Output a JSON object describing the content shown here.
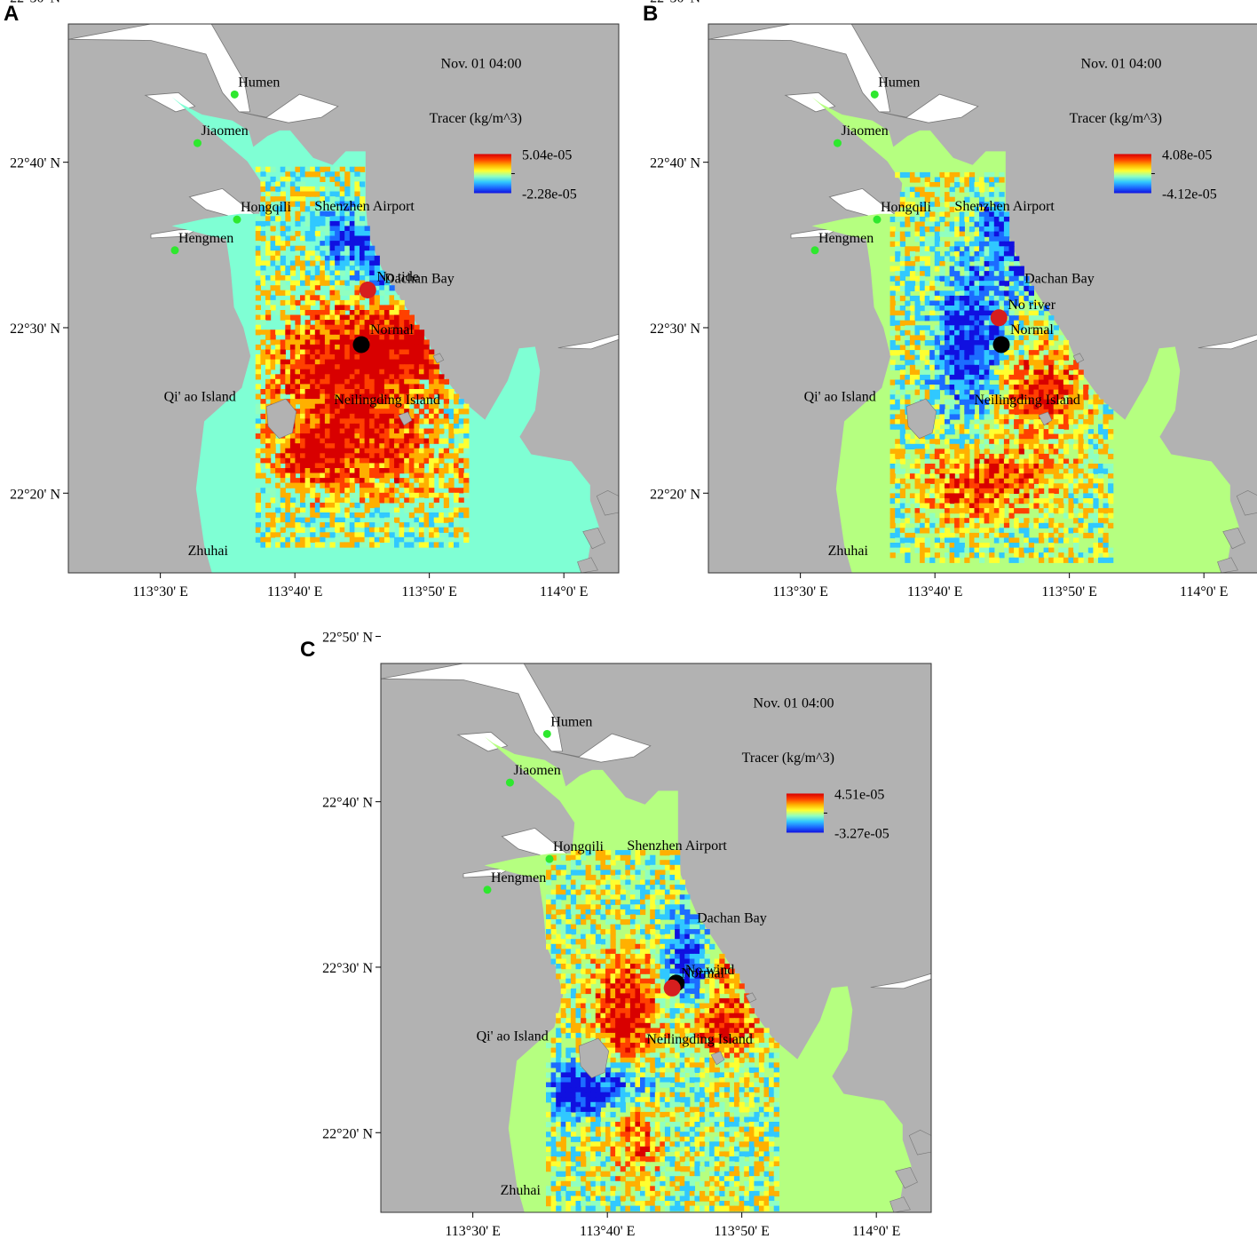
{
  "panels": [
    {
      "id": "a",
      "letter": "A",
      "timestamp": "Nov. 01 04:00",
      "colorbar": {
        "title": "Tracer (kg/m^3)",
        "max_label": "5.04e-05",
        "min_label": "-2.28e-05"
      },
      "background_color": "#7fffd4",
      "anomaly_pattern": "A",
      "markers": [
        {
          "label": "No tide",
          "color": "#d61e1e",
          "lon": 113.757,
          "lat": 22.538
        },
        {
          "label": "Normal",
          "color": "#000000",
          "lon": 113.749,
          "lat": 22.483
        }
      ]
    },
    {
      "id": "b",
      "letter": "B",
      "timestamp": "Nov. 01 04:00",
      "colorbar": {
        "title": "Tracer (kg/m^3)",
        "max_label": "4.08e-05",
        "min_label": "-4.12e-05"
      },
      "background_color": "#b5ff80",
      "anomaly_pattern": "B",
      "markers": [
        {
          "label": "No river",
          "color": "#d61e1e",
          "lon": 113.746,
          "lat": 22.51
        },
        {
          "label": "Normal",
          "color": "#000000",
          "lon": 113.749,
          "lat": 22.483
        }
      ]
    },
    {
      "id": "c",
      "letter": "C",
      "timestamp": "Nov. 01 04:00",
      "colorbar": {
        "title": "Tracer (kg/m^3)",
        "max_label": "4.51e-05",
        "min_label": "-3.27e-05"
      },
      "background_color": "#b5ff80",
      "anomaly_pattern": "C",
      "markers": [
        {
          "label": "No wind",
          "color": "#000000",
          "lon": 113.752,
          "lat": 22.484
        },
        {
          "label": "Normal",
          "color": "#d61e1e",
          "lon": 113.747,
          "lat": 22.479
        }
      ]
    }
  ],
  "axes": {
    "lon_range": [
      113.386,
      114.068
    ],
    "lat_range": [
      22.253,
      22.806
    ],
    "x_ticks": [
      "113°30' E",
      "113°40' E",
      "113°50' E",
      "114°0' E"
    ],
    "x_tick_values": [
      113.5,
      113.6667,
      113.8333,
      114.0
    ],
    "y_ticks": [
      "22°50' N",
      "22°40' N",
      "22°30' N",
      "22°20' N"
    ],
    "y_tick_values": [
      22.8333,
      22.6667,
      22.5,
      22.3333
    ]
  },
  "stations": [
    {
      "name": "Humen",
      "lon": 113.592,
      "lat": 22.735
    },
    {
      "name": "Jiaomen",
      "lon": 113.546,
      "lat": 22.686
    },
    {
      "name": "Hongqili",
      "lon": 113.595,
      "lat": 22.609
    },
    {
      "name": "Hengmen",
      "lon": 113.518,
      "lat": 22.578
    }
  ],
  "places": [
    {
      "name": "Shenzhen Airport",
      "lon": 113.753,
      "lat": 22.618
    },
    {
      "name": "Dachan Bay",
      "lon": 113.821,
      "lat": 22.545
    },
    {
      "name": "Qi' ao Island",
      "lon": 113.549,
      "lat": 22.426
    },
    {
      "name": "Neilingding Island",
      "lon": 113.781,
      "lat": 22.423
    },
    {
      "name": "Zhuhai",
      "lon": 113.559,
      "lat": 22.271
    }
  ],
  "colors": {
    "land": "#b2b2b2",
    "river": "#ffffff",
    "station": "#2ee82e",
    "colormap": [
      "#1010e0",
      "#1c6cff",
      "#30c8ff",
      "#90ffc0",
      "#ffff30",
      "#ffb000",
      "#ff4000",
      "#d80000"
    ]
  }
}
